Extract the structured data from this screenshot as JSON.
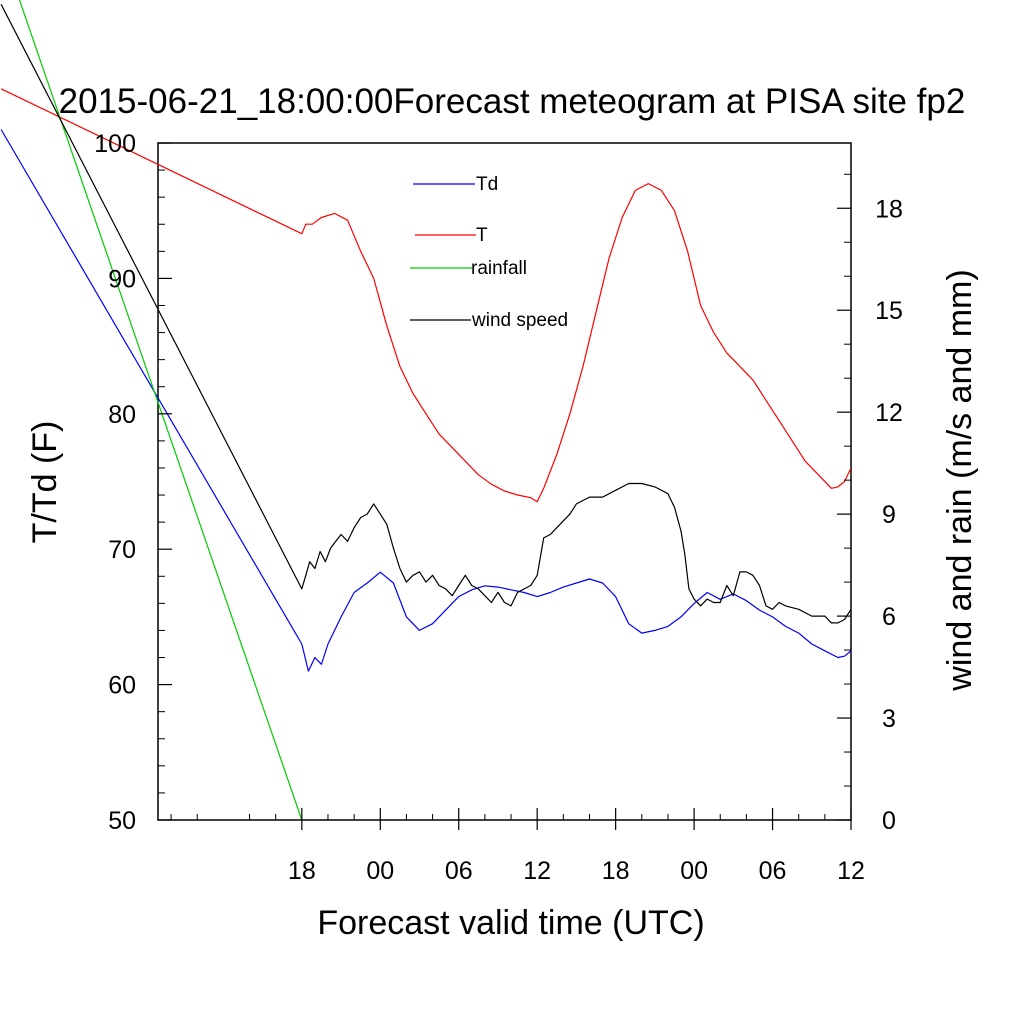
{
  "chart_data": {
    "type": "line",
    "title": "2015-06-21_18:00:00Forecast meteogram at PISA site fp2",
    "xlabel": "Forecast valid time (UTC)",
    "ylabel_left": "T/Td (F)",
    "ylabel_right": "wind and rain (m/s and mm)",
    "x_unit": "hours since 2015-06-21 12:00 UTC",
    "xlim": [
      -5,
      48
    ],
    "ylim_left": [
      50,
      100
    ],
    "ylim_right": [
      0,
      19.92
    ],
    "x_ticks": [
      {
        "x": 6,
        "label": "18"
      },
      {
        "x": 12,
        "label": "00"
      },
      {
        "x": 18,
        "label": "06"
      },
      {
        "x": 24,
        "label": "12"
      },
      {
        "x": 30,
        "label": "18"
      },
      {
        "x": 36,
        "label": "00"
      },
      {
        "x": 42,
        "label": "06"
      },
      {
        "x": 48,
        "label": "12"
      }
    ],
    "y_ticks_left": [
      50,
      60,
      70,
      80,
      90,
      100
    ],
    "y_ticks_right": [
      0,
      3,
      6,
      9,
      12,
      15,
      18
    ],
    "legend": {
      "placement": "top-center"
    },
    "series": [
      {
        "name": "Td",
        "axis": "left",
        "color": "#0000ff",
        "x": [
          -17,
          6,
          6.5,
          7.0,
          7.5,
          8.0,
          9.0,
          10.0,
          11.0,
          12.0,
          13.0,
          14.0,
          15.0,
          16.0,
          17.0,
          18.0,
          19.0,
          20.0,
          21.0,
          22.0,
          23.0,
          24.0,
          25.0,
          26.0,
          27.0,
          28.0,
          29.0,
          30.0,
          31.0,
          32.0,
          33.0,
          34.0,
          35.0,
          36.0,
          37.0,
          38.0,
          39.0,
          40.0,
          41.0,
          42.0,
          43.0,
          44.0,
          45.0,
          46.0,
          47.0,
          47.5,
          48
        ],
        "y": [
          101,
          63,
          61,
          62,
          61.5,
          63,
          65,
          66.8,
          67.5,
          68.3,
          67.5,
          65,
          64,
          64.5,
          65.5,
          66.5,
          67,
          67.3,
          67.2,
          67,
          66.8,
          66.5,
          66.8,
          67.2,
          67.5,
          67.8,
          67.5,
          66.5,
          64.5,
          63.8,
          64,
          64.3,
          65,
          66,
          66.8,
          66.3,
          66.7,
          66.2,
          65.5,
          65,
          64.3,
          63.8,
          63,
          62.5,
          62,
          62.1,
          62.5
        ]
      },
      {
        "name": "T",
        "axis": "left",
        "color": "#ff0000",
        "x": [
          -17,
          6,
          6.3,
          6.8,
          7.5,
          8.5,
          9.5,
          10.5,
          11.5,
          12.5,
          13.5,
          14.5,
          15.5,
          16.5,
          17.5,
          18.5,
          19.5,
          20.5,
          21.5,
          22.5,
          23.5,
          24,
          24.5,
          25.5,
          26.5,
          27.5,
          28.5,
          29.5,
          30.5,
          31.5,
          32.5,
          33.5,
          34.5,
          35.5,
          36.5,
          37.5,
          38.5,
          39.5,
          40.5,
          41.5,
          42.5,
          43.5,
          44.5,
          45.5,
          46.5,
          47,
          47.5,
          48
        ],
        "y": [
          104,
          93.3,
          94,
          94,
          94.5,
          94.8,
          94.3,
          92,
          90,
          86.5,
          83.5,
          81.5,
          80,
          78.5,
          77.5,
          76.5,
          75.5,
          74.8,
          74.3,
          74,
          73.8,
          73.5,
          74.5,
          77,
          80,
          83.5,
          87.5,
          91.5,
          94.5,
          96.5,
          97,
          96.5,
          95,
          92,
          88,
          86,
          84.5,
          83.5,
          82.5,
          81,
          79.5,
          78,
          76.5,
          75.5,
          74.5,
          74.6,
          75,
          76
        ]
      },
      {
        "name": "rainfall",
        "axis": "right",
        "color": "#00cc00",
        "x": [
          -17,
          6
        ],
        "y": [
          25.7,
          0
        ]
      },
      {
        "name": "wind speed",
        "axis": "right",
        "color": "#000000",
        "x": [
          -17,
          6,
          6.3,
          6.6,
          7.0,
          7.4,
          7.8,
          8.2,
          8.6,
          9.0,
          9.5,
          10.0,
          10.5,
          11.0,
          11.5,
          12.0,
          12.5,
          13.0,
          13.5,
          14.0,
          14.5,
          15.0,
          15.5,
          16.0,
          16.5,
          17.0,
          17.5,
          18.0,
          18.5,
          19.0,
          19.5,
          20.0,
          20.5,
          21.0,
          21.5,
          22.0,
          22.5,
          23.0,
          23.5,
          24.0,
          24.5,
          25.0,
          25.5,
          26.0,
          26.5,
          27.0,
          28.0,
          29.0,
          30.0,
          30.5,
          31.0,
          32.0,
          33.0,
          34.0,
          34.5,
          35.0,
          35.3,
          35.6,
          36.0,
          36.5,
          37.0,
          37.5,
          38.0,
          38.5,
          39.0,
          39.5,
          40.0,
          40.5,
          41.0,
          41.5,
          42.0,
          42.5,
          43.0,
          44.0,
          45.0,
          46.0,
          46.5,
          47.0,
          47.5,
          48
        ],
        "y": [
          24,
          6.8,
          7.2,
          7.6,
          7.4,
          7.9,
          7.6,
          8.0,
          8.2,
          8.4,
          8.2,
          8.6,
          8.9,
          9.0,
          9.3,
          9.0,
          8.7,
          8.0,
          7.4,
          7.0,
          7.2,
          7.3,
          7.0,
          7.2,
          6.9,
          6.8,
          6.6,
          6.9,
          7.2,
          6.9,
          6.8,
          6.6,
          6.4,
          6.7,
          6.4,
          6.3,
          6.7,
          6.8,
          6.9,
          7.2,
          8.3,
          8.4,
          8.6,
          8.8,
          9.0,
          9.3,
          9.5,
          9.5,
          9.7,
          9.8,
          9.9,
          9.9,
          9.8,
          9.6,
          9.2,
          8.5,
          7.8,
          6.8,
          6.5,
          6.3,
          6.5,
          6.4,
          6.4,
          6.9,
          6.6,
          7.3,
          7.3,
          7.2,
          6.9,
          6.3,
          6.2,
          6.4,
          6.3,
          6.2,
          6.0,
          6.0,
          5.8,
          5.8,
          5.9,
          6.2
        ]
      }
    ]
  }
}
